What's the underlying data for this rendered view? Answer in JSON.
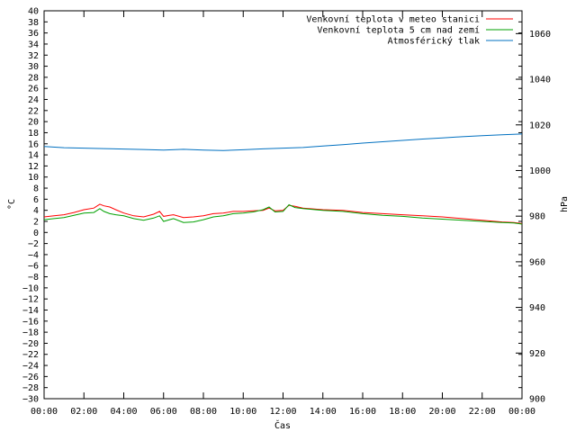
{
  "chart_data": {
    "type": "line",
    "xlabel": "Čas",
    "ylabel": "°C",
    "y2label": "hPa",
    "x_ticks": [
      "00:00",
      "02:00",
      "04:00",
      "06:00",
      "08:00",
      "10:00",
      "12:00",
      "14:00",
      "16:00",
      "18:00",
      "20:00",
      "22:00",
      "00:00"
    ],
    "x_range_hours": [
      0,
      24
    ],
    "ylim": [
      -30,
      40
    ],
    "y_tick_step": 2,
    "y2lim": [
      900,
      1070
    ],
    "y2_ticks": [
      900,
      920,
      940,
      960,
      980,
      1000,
      1020,
      1040,
      1060
    ],
    "grid": false,
    "legend_position": "top-right",
    "series": [
      {
        "name": "Venkovní teplota v meteo stanici",
        "color": "#ff0000",
        "axis": "left",
        "x": [
          0,
          0.5,
          1,
          1.5,
          2,
          2.5,
          2.8,
          3,
          3.3,
          3.6,
          4,
          4.5,
          5,
          5.5,
          5.8,
          6,
          6.3,
          6.5,
          7,
          7.5,
          8,
          8.5,
          9,
          9.5,
          10,
          10.5,
          11,
          11.3,
          11.6,
          12,
          12.3,
          12.6,
          13,
          14,
          15,
          16,
          17,
          18,
          19,
          20,
          21,
          22,
          23,
          23.6,
          24
        ],
        "values": [
          2.8,
          3.0,
          3.2,
          3.6,
          4.1,
          4.4,
          5.1,
          4.8,
          4.6,
          4.1,
          3.5,
          3.0,
          2.8,
          3.3,
          3.8,
          2.9,
          3.1,
          3.2,
          2.7,
          2.8,
          3.0,
          3.4,
          3.5,
          3.8,
          3.8,
          3.9,
          4.0,
          4.4,
          3.9,
          4.0,
          4.9,
          4.7,
          4.4,
          4.1,
          4.0,
          3.6,
          3.4,
          3.2,
          3.0,
          2.8,
          2.5,
          2.2,
          1.9,
          1.8,
          1.6
        ]
      },
      {
        "name": "Venkovní teplota 5 cm nad zemí",
        "color": "#00a000",
        "axis": "left",
        "x": [
          0,
          0.5,
          1,
          1.5,
          2,
          2.5,
          2.8,
          3,
          3.3,
          3.6,
          4,
          4.5,
          5,
          5.5,
          5.8,
          6,
          6.3,
          6.5,
          7,
          7.5,
          8,
          8.5,
          9,
          9.5,
          10,
          10.5,
          11,
          11.3,
          11.6,
          12,
          12.3,
          12.6,
          13,
          14,
          15,
          16,
          17,
          18,
          19,
          20,
          21,
          22,
          23,
          23.6,
          24
        ],
        "values": [
          2.3,
          2.5,
          2.7,
          3.1,
          3.5,
          3.6,
          4.3,
          3.8,
          3.4,
          3.2,
          3.0,
          2.5,
          2.2,
          2.6,
          3.0,
          2.0,
          2.3,
          2.5,
          1.8,
          1.9,
          2.3,
          2.8,
          3.0,
          3.4,
          3.5,
          3.7,
          4.1,
          4.6,
          3.7,
          3.8,
          5.0,
          4.5,
          4.3,
          4.0,
          3.8,
          3.4,
          3.1,
          2.9,
          2.6,
          2.4,
          2.2,
          2.0,
          1.8,
          1.7,
          1.5
        ]
      },
      {
        "name": "Atmosférický tlak",
        "color": "#0070c0",
        "axis": "right",
        "x": [
          0,
          1,
          2,
          3,
          4,
          5,
          6,
          7,
          8,
          9,
          10,
          11,
          12,
          13,
          14,
          15,
          16,
          17,
          18,
          19,
          20,
          21,
          22,
          23,
          24
        ],
        "values": [
          1010.5,
          1010.0,
          1009.8,
          1009.6,
          1009.4,
          1009.2,
          1009.0,
          1009.3,
          1009.0,
          1008.8,
          1009.1,
          1009.5,
          1009.8,
          1010.1,
          1010.7,
          1011.3,
          1012.0,
          1012.6,
          1013.2,
          1013.8,
          1014.3,
          1014.8,
          1015.3,
          1015.7,
          1016.0
        ]
      }
    ]
  }
}
